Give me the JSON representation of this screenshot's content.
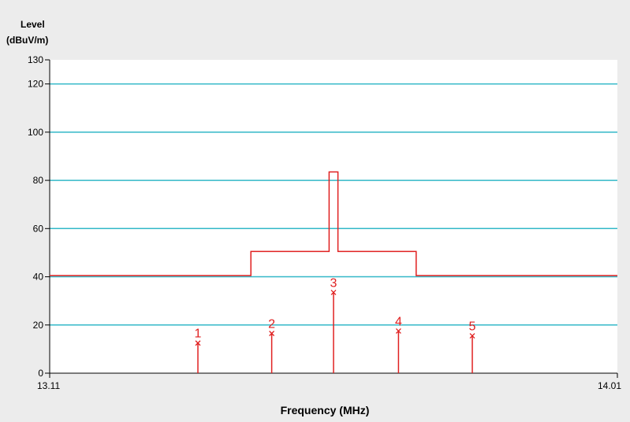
{
  "chart_data": {
    "type": "line",
    "ylabel_line1": "Level",
    "ylabel_line2": "(dBuV/m)",
    "xlabel": "Frequency (MHz)",
    "xlim": [
      13.11,
      14.01
    ],
    "ylim": [
      0,
      130
    ],
    "x_tick_labels": [
      "13.11",
      "14.01"
    ],
    "y_ticks": [
      0,
      20,
      40,
      60,
      80,
      100,
      120,
      130
    ],
    "y_tick_labels": [
      "0",
      "20",
      "40",
      "60",
      "80",
      "100",
      "120",
      "130"
    ],
    "gridlines": [
      20,
      40,
      60,
      80,
      100,
      120
    ],
    "grid": true,
    "colors": {
      "grid": "#33b8c8",
      "limit": "#e02020",
      "marker": "#e02020",
      "plot_bg": "#ffffff",
      "page_bg": "#ececec"
    },
    "limit_line": {
      "name": "",
      "points": [
        [
          13.11,
          40.5
        ],
        [
          13.429,
          40.5
        ],
        [
          13.429,
          50.5
        ],
        [
          13.553,
          50.5
        ],
        [
          13.553,
          83.5
        ],
        [
          13.567,
          83.5
        ],
        [
          13.567,
          50.5
        ],
        [
          13.691,
          50.5
        ],
        [
          13.691,
          40.5
        ],
        [
          14.01,
          40.5
        ]
      ]
    },
    "markers": [
      {
        "label": "1",
        "x": 13.345,
        "y": 12.5
      },
      {
        "label": "2",
        "x": 13.462,
        "y": 16.5
      },
      {
        "label": "3",
        "x": 13.56,
        "y": 33.5
      },
      {
        "label": "4",
        "x": 13.663,
        "y": 17.5
      },
      {
        "label": "5",
        "x": 13.78,
        "y": 15.5
      }
    ]
  }
}
